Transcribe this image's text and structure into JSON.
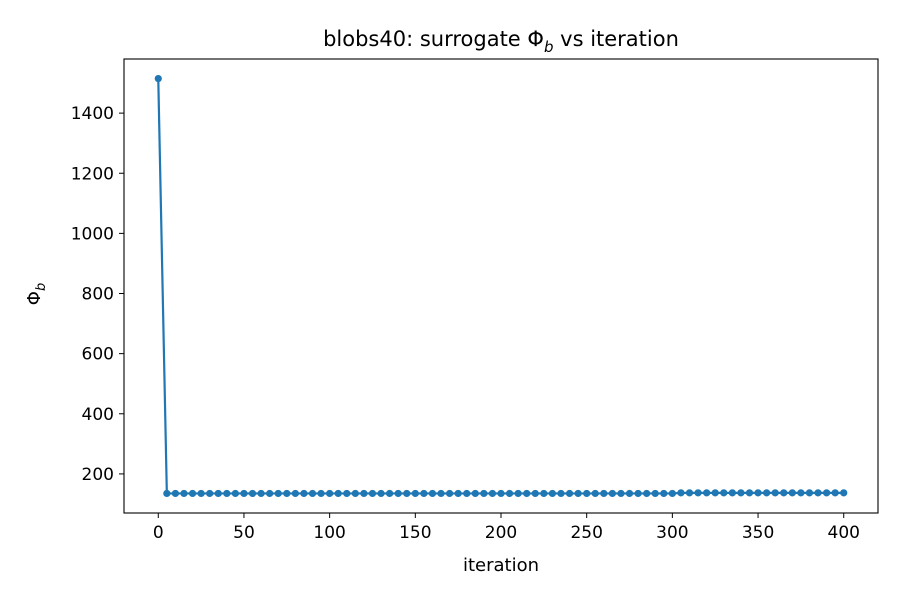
{
  "chart_data": {
    "type": "line",
    "title": "blobs40: surrogate Φ",
    "title_sub": "b",
    "title_suffix": " vs iteration",
    "xlabel": "iteration",
    "ylabel": "Φ",
    "ylabel_sub": "b",
    "xlim": [
      -20,
      420
    ],
    "ylim": [
      70,
      1580
    ],
    "xticks": [
      0,
      50,
      100,
      150,
      200,
      250,
      300,
      350,
      400
    ],
    "yticks": [
      200,
      400,
      600,
      800,
      1000,
      1200,
      1400
    ],
    "grid": false,
    "color": "#1f77b4",
    "series": [
      {
        "name": "",
        "x": [
          0,
          5,
          10,
          15,
          20,
          25,
          30,
          35,
          40,
          45,
          50,
          55,
          60,
          65,
          70,
          75,
          80,
          85,
          90,
          95,
          100,
          105,
          110,
          115,
          120,
          125,
          130,
          135,
          140,
          145,
          150,
          155,
          160,
          165,
          170,
          175,
          180,
          185,
          190,
          195,
          200,
          205,
          210,
          215,
          220,
          225,
          230,
          235,
          240,
          245,
          250,
          255,
          260,
          265,
          270,
          275,
          280,
          285,
          290,
          295,
          300,
          305,
          310,
          315,
          320,
          325,
          330,
          335,
          340,
          345,
          350,
          355,
          360,
          365,
          370,
          375,
          380,
          385,
          390,
          395,
          400
        ],
        "y": [
          1515,
          135,
          135,
          135,
          135,
          135,
          135,
          135,
          135,
          135,
          135,
          135,
          135,
          135,
          135,
          135,
          135,
          135,
          135,
          135,
          135,
          135,
          135,
          135,
          135,
          135,
          135,
          135,
          135,
          135,
          135,
          135,
          135,
          135,
          135,
          135,
          135,
          135,
          135,
          135,
          135,
          135,
          135,
          135,
          135,
          135,
          135,
          135,
          135,
          135,
          135,
          135,
          135,
          135,
          135,
          135,
          135,
          135,
          135,
          135,
          135,
          137,
          137,
          137,
          137,
          137,
          137,
          137,
          137,
          137,
          137,
          137,
          137,
          137,
          137,
          137,
          137,
          137,
          137,
          137,
          137
        ]
      }
    ]
  }
}
